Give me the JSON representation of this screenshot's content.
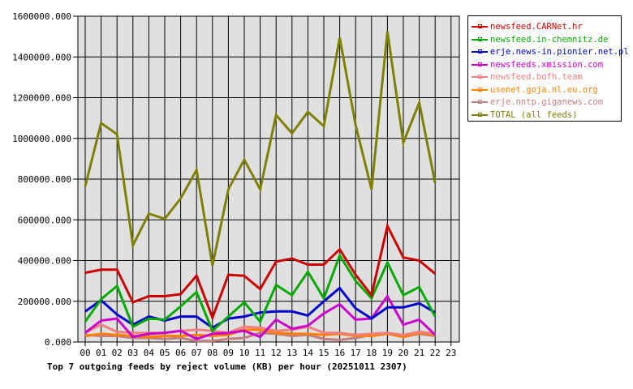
{
  "chart_data": {
    "type": "line",
    "title": "Top 7 outgoing feeds by reject volume (KB) per hour (20251011 2307)",
    "xlabel": "",
    "ylabel": "",
    "ylim": [
      0,
      1600000
    ],
    "grid": true,
    "legend_position": "right",
    "x": [
      "00",
      "01",
      "02",
      "03",
      "04",
      "05",
      "06",
      "07",
      "08",
      "09",
      "10",
      "11",
      "12",
      "13",
      "14",
      "15",
      "16",
      "17",
      "18",
      "19",
      "20",
      "21",
      "22",
      "23"
    ],
    "y_ticks": [
      "0.000",
      "200000.000",
      "400000.000",
      "600000.000",
      "800000.000",
      "1000000.000",
      "1200000.000",
      "1400000.000",
      "1600000.000"
    ],
    "y_tick_values": [
      0,
      200000,
      400000,
      600000,
      800000,
      1000000,
      1200000,
      1400000,
      1600000
    ],
    "series": [
      {
        "name": "newsfeed.CARNet.hr",
        "color": "#cc0000",
        "values": [
          340000,
          355000,
          355000,
          195000,
          225000,
          225000,
          235000,
          325000,
          120000,
          330000,
          325000,
          260000,
          395000,
          410000,
          380000,
          380000,
          455000,
          330000,
          230000,
          570000,
          415000,
          400000,
          335000
        ]
      },
      {
        "name": "newsfeed.in-chemnitz.de",
        "color": "#00aa00",
        "values": [
          100000,
          210000,
          275000,
          75000,
          115000,
          110000,
          175000,
          245000,
          55000,
          125000,
          195000,
          100000,
          280000,
          230000,
          345000,
          215000,
          425000,
          300000,
          215000,
          390000,
          230000,
          270000,
          125000
        ]
      },
      {
        "name": "erje.news-in.pionier.net.pl",
        "color": "#0000cc",
        "values": [
          150000,
          205000,
          135000,
          85000,
          125000,
          105000,
          125000,
          125000,
          70000,
          115000,
          125000,
          145000,
          150000,
          150000,
          130000,
          200000,
          265000,
          165000,
          115000,
          170000,
          170000,
          190000,
          145000
        ]
      },
      {
        "name": "newsfeeds.xmission.com",
        "color": "#cc00cc",
        "values": [
          45000,
          105000,
          115000,
          25000,
          40000,
          45000,
          55000,
          15000,
          40000,
          45000,
          55000,
          25000,
          110000,
          65000,
          80000,
          140000,
          185000,
          110000,
          115000,
          225000,
          85000,
          110000,
          35000
        ]
      },
      {
        "name": "newsfeed.bofh.team",
        "color": "#f08080",
        "values": [
          45000,
          85000,
          50000,
          45000,
          45000,
          45000,
          55000,
          60000,
          55000,
          45000,
          75000,
          70000,
          55000,
          60000,
          75000,
          45000,
          45000,
          35000,
          40000,
          45000,
          35000,
          50000,
          40000
        ]
      },
      {
        "name": "usenet.goja.nl.eu.org",
        "color": "#ff7f00",
        "values": [
          30000,
          40000,
          35000,
          30000,
          25000,
          30000,
          30000,
          35000,
          30000,
          35000,
          60000,
          60000,
          45000,
          40000,
          40000,
          35000,
          40000,
          30000,
          30000,
          40000,
          25000,
          45000,
          35000
        ]
      },
      {
        "name": "erje.nntp.giganews.com",
        "color": "#c08080",
        "values": [
          35000,
          30000,
          30000,
          20000,
          20000,
          15000,
          20000,
          5000,
          5000,
          15000,
          20000,
          45000,
          40000,
          30000,
          35000,
          15000,
          10000,
          20000,
          35000,
          45000,
          25000,
          40000,
          30000
        ]
      },
      {
        "name": "TOTAL (all feeds)",
        "color": "#808000",
        "values": [
          765000,
          1075000,
          1020000,
          475000,
          630000,
          605000,
          705000,
          845000,
          375000,
          750000,
          895000,
          750000,
          1115000,
          1025000,
          1130000,
          1060000,
          1495000,
          1065000,
          750000,
          1525000,
          980000,
          1175000,
          780000
        ]
      }
    ]
  },
  "colors": {
    "plot_background": "#e0e0e0",
    "grid": "#000000",
    "axis": "#000000"
  }
}
